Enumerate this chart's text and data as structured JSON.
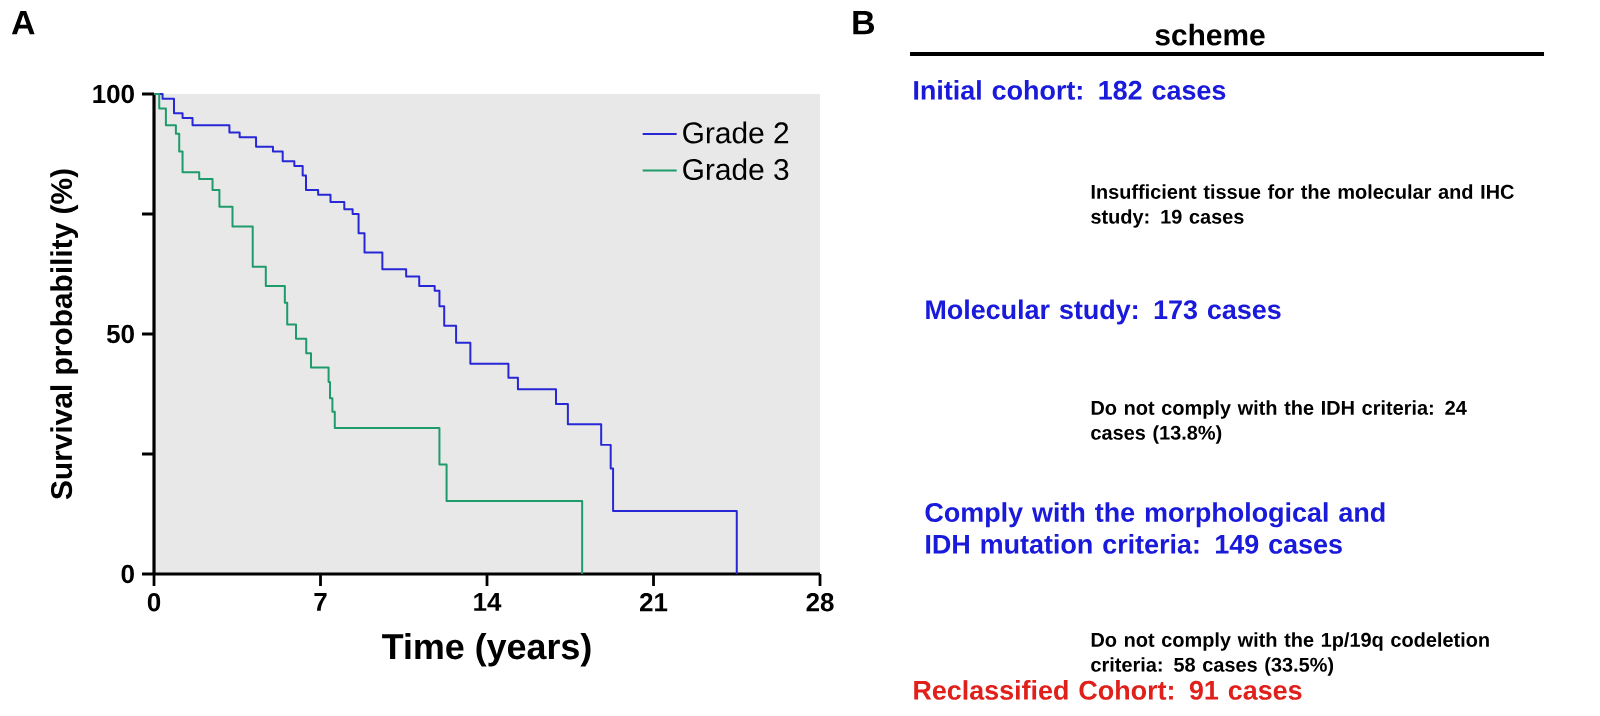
{
  "chart_data": [
    {
      "type": "step",
      "title": "A",
      "xlabel": "Time (years)",
      "ylabel": "Survival probability (%)",
      "xlim": [
        0,
        28
      ],
      "xticks": [
        0,
        7,
        14,
        21,
        28
      ],
      "ylim": [
        0,
        100
      ],
      "yticks": [
        0,
        {
          "value": 25,
          "label": null
        },
        50,
        {
          "value": 75,
          "label": null
        },
        100
      ],
      "legend": "top right",
      "grid": false,
      "series": [
        {
          "name": "Grade 2",
          "color": "#2727d6",
          "x": [
            0,
            0.36,
            0.84,
            1.2,
            1.62,
            3.17,
            3.6,
            4.29,
            5.0,
            5.41,
            5.9,
            6.25,
            6.39,
            6.9,
            7.42,
            8.0,
            8.35,
            8.6,
            8.85,
            9.6,
            10.6,
            11.15,
            11.8,
            12.0,
            12.2,
            12.7,
            13.3,
            14.9,
            15.3,
            16.9,
            17.4,
            18.8,
            19.2,
            19.3,
            24.5
          ],
          "values": [
            100,
            99,
            96,
            95,
            93.5,
            92,
            91,
            89,
            88,
            86,
            85,
            83,
            80,
            79,
            77.5,
            76,
            75,
            71,
            67,
            63.5,
            62,
            60,
            59,
            55.8,
            51.7,
            48.2,
            43.8,
            40.9,
            38.5,
            35.4,
            31.2,
            26.9,
            22,
            13.1,
            0
          ]
        },
        {
          "name": "Grade 3",
          "color": "#1f9a6a",
          "x": [
            0,
            0.22,
            0.5,
            0.92,
            1.06,
            1.2,
            1.9,
            2.46,
            2.75,
            3.3,
            4.15,
            4.7,
            5.5,
            5.6,
            5.97,
            6.4,
            6.6,
            7.34,
            7.4,
            7.5,
            7.6,
            12.0,
            12.3,
            18.0
          ],
          "values": [
            100,
            97,
            93.5,
            91.7,
            88,
            83.7,
            82.3,
            80,
            76.5,
            72.4,
            64,
            60,
            56.5,
            52,
            49,
            46,
            43,
            40,
            36.6,
            33.8,
            30.4,
            22.8,
            15.2,
            0
          ]
        }
      ]
    },
    {
      "type": "other",
      "title": "B",
      "subtitle": "scheme",
      "annotations": [
        "Initial cohort: 182 cases",
        "Insufficient tissue for the molecular and IHC study: 19 cases",
        "Molecular study: 173 cases",
        "Do not comply with the IDH criteria: 24 cases (13.8%)",
        "Comply with the morphological and IDH mutation criteria: 149 cases",
        "Do not comply with the 1p/19q codeletion criteria: 58 cases (33.5%)",
        "Reclassified Cohort: 91 cases"
      ],
      "colors": [
        "#1a1adb",
        "#000000",
        "#1a1adb",
        "#000000",
        "#1a1adb",
        "#000000",
        "#e0201b"
      ]
    }
  ]
}
